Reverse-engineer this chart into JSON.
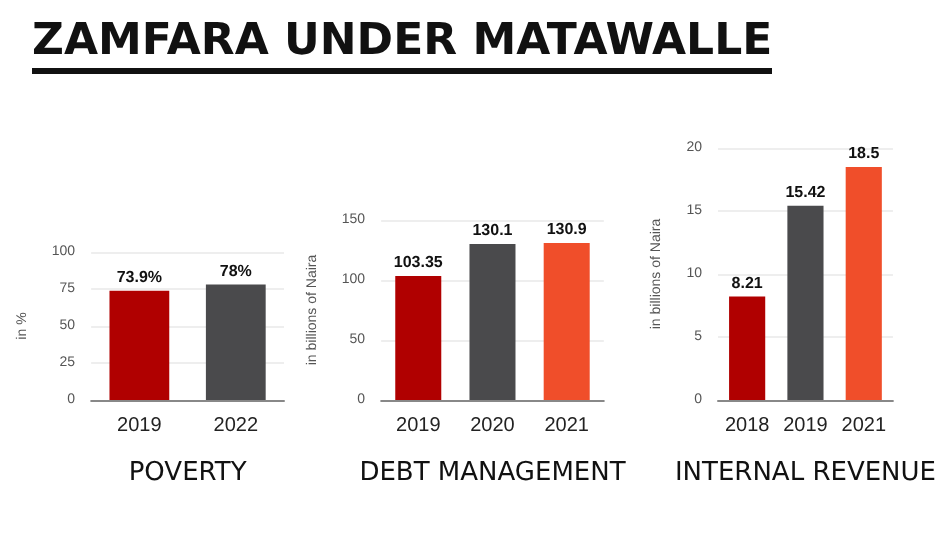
{
  "chart_data": [
    {
      "type": "bar",
      "title": "ZAMFARA UNDER MATAWALLE",
      "xlabel": "POVERTY",
      "ylabel": "in %",
      "categories": [
        "2019",
        "2022"
      ],
      "colors": [
        "#b00000",
        "#4a4a4c"
      ],
      "values": [
        73.9,
        78
      ],
      "value_labels": [
        "73.9%",
        "78%"
      ],
      "ylim": [
        0,
        100
      ],
      "yticks": [
        0,
        25,
        50,
        75,
        100
      ],
      "grid": "y"
    },
    {
      "type": "bar",
      "xlabel": "DEBT MANAGEMENT",
      "ylabel": "in billions of Naira",
      "categories": [
        "2019",
        "2020",
        "2021"
      ],
      "colors": [
        "#b00000",
        "#4a4a4c",
        "#f04e2a"
      ],
      "values": [
        103.35,
        130.1,
        130.9
      ],
      "value_labels": [
        "103.35",
        "130.1",
        "130.9"
      ],
      "ylim": [
        0,
        150
      ],
      "yticks": [
        0,
        50,
        100,
        150
      ],
      "grid": "y"
    },
    {
      "type": "bar",
      "xlabel": "INTERNAL REVENUE",
      "ylabel": "in billions of Naira",
      "categories": [
        "2018",
        "2019",
        "2021"
      ],
      "colors": [
        "#b00000",
        "#4a4a4c",
        "#f04e2a"
      ],
      "values": [
        8.21,
        15.42,
        18.5
      ],
      "value_labels": [
        "8.21",
        "15.42",
        "18.5"
      ],
      "ylim": [
        0,
        20
      ],
      "yticks": [
        0,
        5,
        10,
        15,
        20
      ],
      "grid": "y"
    }
  ]
}
